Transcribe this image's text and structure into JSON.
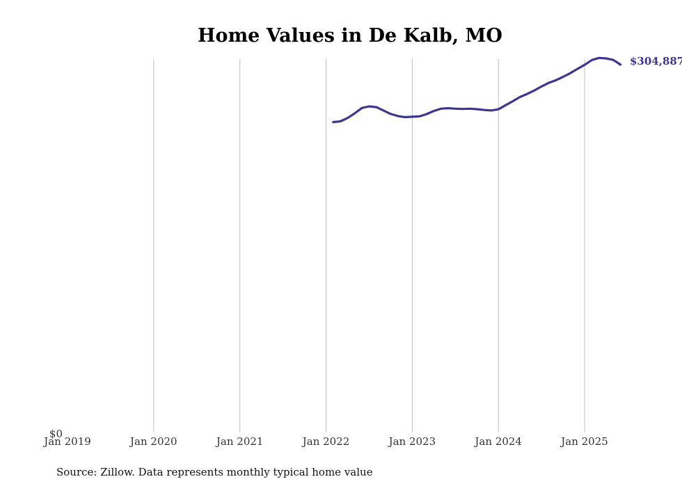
{
  "chart_data": {
    "type": "line",
    "title": "Home Values in De Kalb, MO",
    "xlabel": "",
    "ylabel": "",
    "x_ticks": [
      "Jan 2019",
      "Jan 2020",
      "Jan 2021",
      "Jan 2022",
      "Jan 2023",
      "Jan 2024",
      "Jan 2025"
    ],
    "y_tick_label": "$0",
    "ylim": [
      0,
      304887
    ],
    "grid": "vertical",
    "series": [
      {
        "color": "#3d3591",
        "end_label": "$304,887",
        "points": [
          [
            "2022-02",
            257300
          ],
          [
            "2022-03",
            257900
          ],
          [
            "2022-04",
            260700
          ],
          [
            "2022-05",
            264600
          ],
          [
            "2022-06",
            269000
          ],
          [
            "2022-07",
            270300
          ],
          [
            "2022-08",
            269700
          ],
          [
            "2022-09",
            266900
          ],
          [
            "2022-10",
            264000
          ],
          [
            "2022-11",
            262300
          ],
          [
            "2022-12",
            261400
          ],
          [
            "2023-01",
            261700
          ],
          [
            "2023-02",
            262000
          ],
          [
            "2023-03",
            263900
          ],
          [
            "2023-04",
            266500
          ],
          [
            "2023-05",
            268400
          ],
          [
            "2023-06",
            268800
          ],
          [
            "2023-07",
            268400
          ],
          [
            "2023-08",
            268200
          ],
          [
            "2023-09",
            268400
          ],
          [
            "2023-10",
            268000
          ],
          [
            "2023-11",
            267300
          ],
          [
            "2023-12",
            266900
          ],
          [
            "2024-01",
            267900
          ],
          [
            "2024-02",
            271300
          ],
          [
            "2024-03",
            274600
          ],
          [
            "2024-04",
            278100
          ],
          [
            "2024-05",
            280600
          ],
          [
            "2024-06",
            283500
          ],
          [
            "2024-07",
            286800
          ],
          [
            "2024-08",
            289800
          ],
          [
            "2024-09",
            292000
          ],
          [
            "2024-10",
            294800
          ],
          [
            "2024-11",
            297800
          ],
          [
            "2024-12",
            301400
          ],
          [
            "2025-01",
            304700
          ],
          [
            "2025-02",
            308700
          ],
          [
            "2025-03",
            310500
          ],
          [
            "2025-04",
            310100
          ],
          [
            "2025-05",
            308800
          ],
          [
            "2025-06",
            304887
          ]
        ]
      }
    ]
  },
  "source_text": "Source: Zillow. Data represents monthly typical home value"
}
